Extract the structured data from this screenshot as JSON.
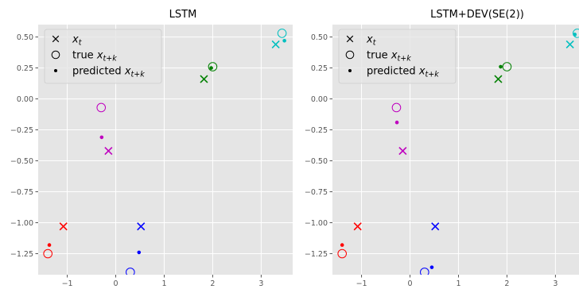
{
  "chart_data": [
    {
      "type": "scatter",
      "title": "LSTM",
      "xlim": [
        -1.6,
        3.65
      ],
      "ylim": [
        -1.42,
        0.6
      ],
      "xticks": [
        -1,
        0,
        1,
        2,
        3
      ],
      "xtick_labels": [
        "−1",
        "0",
        "1",
        "2",
        "3"
      ],
      "yticks": [
        0.5,
        0.25,
        0.0,
        -0.25,
        -0.5,
        -0.75,
        -1.0,
        -1.25
      ],
      "ytick_labels": [
        "0.50",
        "0.25",
        "0.00",
        "−0.25",
        "−0.50",
        "−0.75",
        "−1.00",
        "−1.25"
      ],
      "grid": true,
      "legend_position": "top-left",
      "legend": [
        {
          "marker": "x",
          "label": "x_t"
        },
        {
          "marker": "circle",
          "label": "true x_{t+k}"
        },
        {
          "marker": "dot",
          "label": "predicted x_{t+k}"
        }
      ],
      "points": [
        {
          "color": "#ff0000",
          "x_t": [
            -1.08,
            -1.03
          ],
          "true": [
            -1.4,
            -1.25
          ],
          "pred": [
            -1.37,
            -1.18
          ]
        },
        {
          "color": "#bf00bf",
          "x_t": [
            -0.15,
            -0.42
          ],
          "true": [
            -0.3,
            -0.07
          ],
          "pred": [
            -0.29,
            -0.31
          ]
        },
        {
          "color": "#0000ff",
          "x_t": [
            0.52,
            -1.03
          ],
          "true": [
            0.3,
            -1.4
          ],
          "pred": [
            0.48,
            -1.24
          ]
        },
        {
          "color": "#008000",
          "x_t": [
            1.82,
            0.16
          ],
          "true": [
            2.0,
            0.26
          ],
          "pred": [
            1.97,
            0.25
          ]
        },
        {
          "color": "#00bfbf",
          "x_t": [
            3.3,
            0.44
          ],
          "true": [
            3.43,
            0.53
          ],
          "pred": [
            3.48,
            0.47
          ]
        }
      ]
    },
    {
      "type": "scatter",
      "title": "LSTM+DEV(SE(2))",
      "xlim": [
        -1.6,
        3.65
      ],
      "ylim": [
        -1.42,
        0.6
      ],
      "xticks": [
        -1,
        0,
        1,
        2,
        3
      ],
      "xtick_labels": [
        "−1",
        "0",
        "1",
        "2",
        "3"
      ],
      "yticks": [
        0.5,
        0.25,
        0.0,
        -0.25,
        -0.5,
        -0.75,
        -1.0,
        -1.25
      ],
      "ytick_labels": [
        "0.50",
        "0.25",
        "0.00",
        "−0.25",
        "−0.50",
        "−0.75",
        "−1.00",
        "−1.25"
      ],
      "grid": true,
      "legend_position": "top-left",
      "legend": [
        {
          "marker": "x",
          "label": "x_t"
        },
        {
          "marker": "circle",
          "label": "true x_{t+k}"
        },
        {
          "marker": "dot",
          "label": "predicted x_{t+k}"
        }
      ],
      "points": [
        {
          "color": "#ff0000",
          "x_t": [
            -1.08,
            -1.03
          ],
          "true": [
            -1.4,
            -1.25
          ],
          "pred": [
            -1.4,
            -1.18
          ]
        },
        {
          "color": "#bf00bf",
          "x_t": [
            -0.15,
            -0.42
          ],
          "true": [
            -0.28,
            -0.07
          ],
          "pred": [
            -0.27,
            -0.19
          ]
        },
        {
          "color": "#0000ff",
          "x_t": [
            0.52,
            -1.03
          ],
          "true": [
            0.3,
            -1.4
          ],
          "pred": [
            0.45,
            -1.36
          ]
        },
        {
          "color": "#008000",
          "x_t": [
            1.82,
            0.16
          ],
          "true": [
            2.0,
            0.26
          ],
          "pred": [
            1.87,
            0.26
          ]
        },
        {
          "color": "#00bfbf",
          "x_t": [
            3.3,
            0.44
          ],
          "true": [
            3.45,
            0.53
          ],
          "pred": [
            3.4,
            0.52
          ]
        }
      ]
    }
  ]
}
